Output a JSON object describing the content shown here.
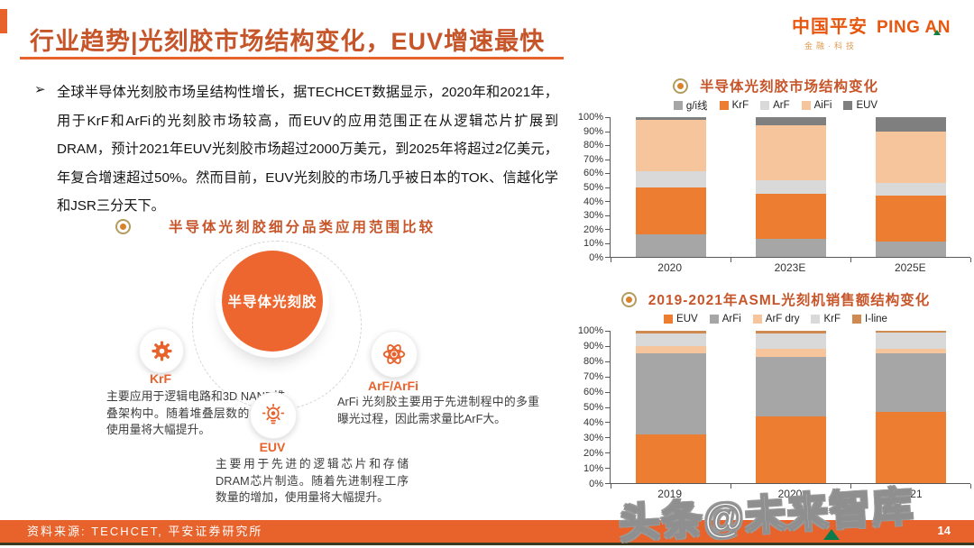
{
  "header": {
    "title": "行业趋势|光刻胶市场结构变化，EUV增速最快",
    "logo": {
      "cn": "中国平安",
      "en": "PING AN",
      "sub": "金融·科技"
    }
  },
  "intro": {
    "bullet": "➢",
    "text": "全球半导体光刻胶市场呈结构性增长，据TECHCET数据显示，2020年和2021年，用于KrF和ArFi的光刻胶市场较高，而EUV的应用范围正在从逻辑芯片扩展到DRAM，预计2021年EUV光刻胶市场超过2000万美元，到2025年将超过2亿美元，年复合增速超过50%。然而目前，EUV光刻胶的市场几乎被日本的TOK、信越化学和JSR三分天下。"
  },
  "diagram": {
    "heading": "半导体光刻胶细分品类应用范围比较",
    "center_label": "半导体光刻胶",
    "nodes": [
      {
        "id": "krf",
        "icon": "gear-icon",
        "label": "KrF",
        "desc": "主要应用于逻辑电路和3D NAND堆叠架构中。随着堆叠层数的增加，使用量将大幅提升。"
      },
      {
        "id": "arf",
        "icon": "atom-icon",
        "label": "ArF/ArFi",
        "desc": "ArFi 光刻胶主要用于先进制程中的多重曝光过程，因此需求量比ArF大。"
      },
      {
        "id": "euv",
        "icon": "bulb-icon",
        "label": "EUV",
        "desc": "主要用于先进的逻辑芯片和存储DRAM芯片制造。随着先进制程工序数量的增加，使用量将大幅提升。"
      }
    ]
  },
  "chart_data": [
    {
      "type": "bar",
      "stacked": true,
      "percent": true,
      "title": "半导体光刻胶市场结构变化",
      "categories": [
        "2020",
        "2023E",
        "2025E"
      ],
      "series": [
        {
          "name": "g/i线",
          "color": "#a6a6a6",
          "values": [
            16,
            13,
            11
          ]
        },
        {
          "name": "KrF",
          "color": "#ed7d31",
          "values": [
            34,
            32,
            33
          ]
        },
        {
          "name": "ArF",
          "color": "#d9d9d9",
          "values": [
            11,
            10,
            9
          ]
        },
        {
          "name": "AiFi",
          "color": "#f7c59c",
          "values": [
            37,
            39,
            37
          ]
        },
        {
          "name": "EUV",
          "color": "#7f7f7f",
          "values": [
            2,
            6,
            10
          ]
        }
      ],
      "ylim": [
        0,
        100
      ],
      "yticks": [
        "0%",
        "10%",
        "20%",
        "30%",
        "40%",
        "50%",
        "60%",
        "70%",
        "80%",
        "90%",
        "100%"
      ],
      "legend_position": "top",
      "grid": false
    },
    {
      "type": "bar",
      "stacked": true,
      "percent": true,
      "title": "2019-2021年ASML光刻机销售额结构变化",
      "categories": [
        "2019",
        "2020",
        "2021"
      ],
      "series": [
        {
          "name": "EUV",
          "color": "#ed7d31",
          "values": [
            32,
            44,
            47
          ]
        },
        {
          "name": "ArFi",
          "color": "#a6a6a6",
          "values": [
            53,
            39,
            38
          ]
        },
        {
          "name": "ArF dry",
          "color": "#f7c59c",
          "values": [
            5,
            5,
            3
          ]
        },
        {
          "name": "KrF",
          "color": "#d9d9d9",
          "values": [
            8,
            10,
            11
          ]
        },
        {
          "name": "I-line",
          "color": "#cf8a52",
          "values": [
            2,
            2,
            1
          ]
        }
      ],
      "ylim": [
        0,
        100
      ],
      "yticks": [
        "0%",
        "10%",
        "20%",
        "30%",
        "40%",
        "50%",
        "60%",
        "70%",
        "80%",
        "90%",
        "100%"
      ],
      "legend_position": "top",
      "grid": false
    }
  ],
  "footer": {
    "source": "资料来源: TECHCET, 平安证券研究所",
    "page": "14"
  },
  "watermark": {
    "text": "头条@未来智库"
  }
}
